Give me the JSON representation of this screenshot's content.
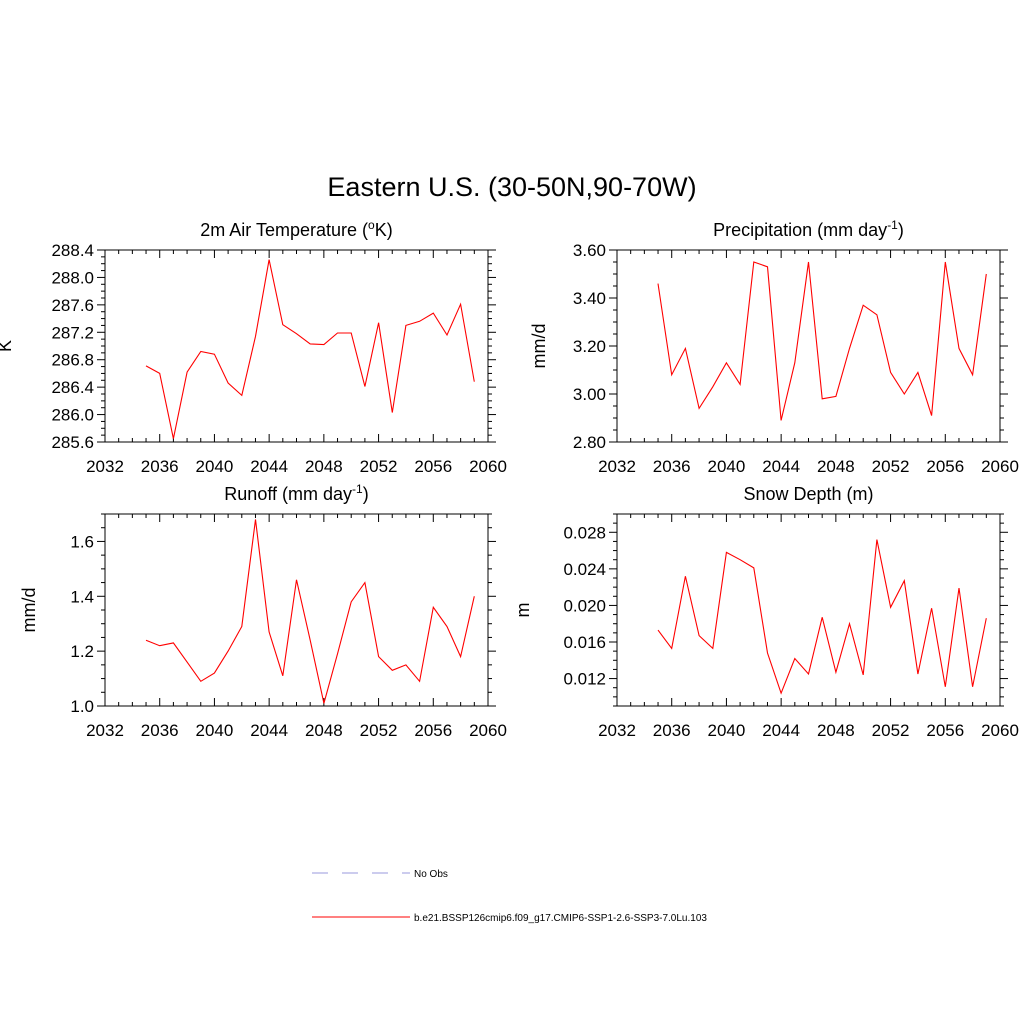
{
  "figure": {
    "title": "Eastern U.S. (30-50N,90-70W)"
  },
  "colors": {
    "model_line": "#ff0000",
    "obs_line": "#9999dd",
    "axis": "#000000"
  },
  "legend": {
    "placement": "bottom-center",
    "items": [
      {
        "label": "No Obs",
        "style": "dashed",
        "color": "#9999dd"
      },
      {
        "label": "b.e21.BSSP126cmip6.f09_g17.CMIP6-SSP1-2.6-SSP3-7.0Lu.103",
        "style": "solid",
        "color": "#ff0000"
      }
    ]
  },
  "chart_data": [
    {
      "type": "line",
      "title": "2m Air Temperature (",
      "title_sup": "o",
      "title_after": "K)",
      "xlabel": "",
      "ylabel": "K",
      "xlim": [
        2032,
        2060
      ],
      "ylim": [
        285.6,
        288.4
      ],
      "xticks": [
        "2032",
        "2036",
        "2040",
        "2044",
        "2048",
        "2052",
        "2056",
        "2060"
      ],
      "yticks": [
        "285.6",
        "286.0",
        "286.4",
        "286.8",
        "287.2",
        "287.6",
        "288.0",
        "288.4"
      ],
      "x": [
        2035,
        2036,
        2037,
        2038,
        2039,
        2040,
        2041,
        2042,
        2043,
        2044,
        2045,
        2046,
        2047,
        2048,
        2049,
        2050,
        2051,
        2052,
        2053,
        2054,
        2055,
        2056,
        2057,
        2058,
        2059
      ],
      "series": [
        {
          "values": [
            286.71,
            286.6,
            285.65,
            286.62,
            286.92,
            286.88,
            286.46,
            286.28,
            287.14,
            288.26,
            287.31,
            287.18,
            287.03,
            287.02,
            287.19,
            287.19,
            286.41,
            287.34,
            286.03,
            287.3,
            287.36,
            287.48,
            287.16,
            287.61,
            286.48
          ]
        }
      ]
    },
    {
      "type": "line",
      "title": "Precipitation (mm day",
      "title_sup": "-1",
      "title_after": ")",
      "xlabel": "",
      "ylabel": "mm/d",
      "xlim": [
        2032,
        2060
      ],
      "ylim": [
        2.8,
        3.6
      ],
      "xticks": [
        "2032",
        "2036",
        "2040",
        "2044",
        "2048",
        "2052",
        "2056",
        "2060"
      ],
      "yticks": [
        "2.80",
        "3.00",
        "3.20",
        "3.40",
        "3.60"
      ],
      "x": [
        2035,
        2036,
        2037,
        2038,
        2039,
        2040,
        2041,
        2042,
        2043,
        2044,
        2045,
        2046,
        2047,
        2048,
        2049,
        2050,
        2051,
        2052,
        2053,
        2054,
        2055,
        2056,
        2057,
        2058,
        2059
      ],
      "series": [
        {
          "values": [
            3.46,
            3.08,
            3.19,
            2.94,
            3.03,
            3.13,
            3.04,
            3.55,
            3.53,
            2.89,
            3.13,
            3.55,
            2.98,
            2.99,
            3.19,
            3.37,
            3.33,
            3.09,
            3.0,
            3.09,
            2.91,
            3.55,
            3.19,
            3.08,
            3.5
          ]
        }
      ]
    },
    {
      "type": "line",
      "title": "Runoff (mm day",
      "title_sup": "-1",
      "title_after": ")",
      "xlabel": "",
      "ylabel": "mm/d",
      "xlim": [
        2032,
        2060
      ],
      "ylim": [
        1.0,
        1.7
      ],
      "xticks": [
        "2032",
        "2036",
        "2040",
        "2044",
        "2048",
        "2052",
        "2056",
        "2060"
      ],
      "yticks": [
        "1.0",
        "1.2",
        "1.4",
        "1.6"
      ],
      "x": [
        2035,
        2036,
        2037,
        2038,
        2039,
        2040,
        2041,
        2042,
        2043,
        2044,
        2045,
        2046,
        2047,
        2048,
        2049,
        2050,
        2051,
        2052,
        2053,
        2054,
        2055,
        2056,
        2057,
        2058,
        2059
      ],
      "series": [
        {
          "values": [
            1.24,
            1.22,
            1.23,
            1.16,
            1.09,
            1.12,
            1.2,
            1.29,
            1.68,
            1.27,
            1.11,
            1.46,
            1.24,
            1.01,
            1.19,
            1.38,
            1.45,
            1.18,
            1.13,
            1.15,
            1.09,
            1.36,
            1.29,
            1.18,
            1.4
          ]
        }
      ]
    },
    {
      "type": "line",
      "title": "Snow Depth (m)",
      "title_sup": "",
      "title_after": "",
      "xlabel": "",
      "ylabel": "m",
      "xlim": [
        2032,
        2060
      ],
      "ylim": [
        0.009,
        0.03
      ],
      "xticks": [
        "2032",
        "2036",
        "2040",
        "2044",
        "2048",
        "2052",
        "2056",
        "2060"
      ],
      "yticks": [
        "0.012",
        "0.016",
        "0.020",
        "0.024",
        "0.028"
      ],
      "x": [
        2035,
        2036,
        2037,
        2038,
        2039,
        2040,
        2041,
        2042,
        2043,
        2044,
        2045,
        2046,
        2047,
        2048,
        2049,
        2050,
        2051,
        2052,
        2053,
        2054,
        2055,
        2056,
        2057,
        2058,
        2059
      ],
      "series": [
        {
          "values": [
            0.0173,
            0.0153,
            0.0232,
            0.0167,
            0.0153,
            0.0258,
            0.025,
            0.0241,
            0.0148,
            0.0104,
            0.0142,
            0.0125,
            0.0187,
            0.0127,
            0.018,
            0.0124,
            0.0272,
            0.0198,
            0.0227,
            0.0125,
            0.0197,
            0.0111,
            0.0219,
            0.0111,
            0.0186
          ]
        }
      ]
    }
  ]
}
